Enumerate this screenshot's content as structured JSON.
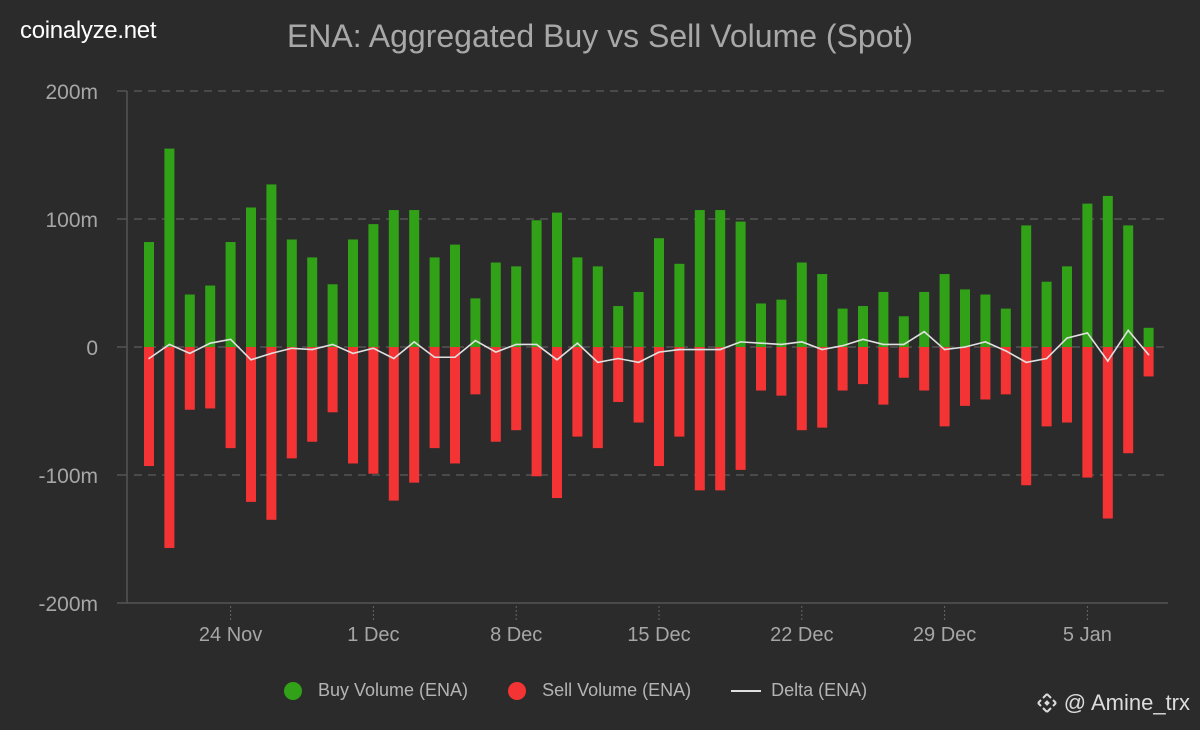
{
  "header": {
    "brand": "coinalyze.net",
    "title": "ENA: Aggregated Buy vs Sell Volume (Spot)"
  },
  "legend": [
    {
      "label": "Buy Volume (ENA)",
      "color": "#31a217",
      "symbol": "dot"
    },
    {
      "label": "Sell Volume (ENA)",
      "color": "#f43434",
      "symbol": "dot"
    },
    {
      "label": "Delta (ENA)",
      "color": "#e0e0e0",
      "symbol": "line"
    }
  ],
  "watermark": {
    "icon": "binance-diamond-icon",
    "text": "@ Amine_trx"
  },
  "chart_data": {
    "type": "bar",
    "title": "ENA: Aggregated Buy vs Sell Volume (Spot)",
    "xlabel": "",
    "ylabel": "",
    "ylim": [
      -200,
      200
    ],
    "y_unit": "m",
    "y_ticks": [
      200,
      100,
      0,
      -100,
      -200
    ],
    "y_tick_labels": [
      "200m",
      "100m",
      "0",
      "-100m",
      "-200m"
    ],
    "grid": true,
    "legend_position": "bottom",
    "x_start_date": "20 Nov",
    "x_tick_labels": [
      "24 Nov",
      "1 Dec",
      "8 Dec",
      "15 Dec",
      "22 Dec",
      "29 Dec",
      "5 Jan"
    ],
    "x_tick_day_index": [
      4,
      11,
      18,
      25,
      32,
      39,
      46
    ],
    "categories": [
      "20 Nov",
      "21 Nov",
      "22 Nov",
      "23 Nov",
      "24 Nov",
      "25 Nov",
      "26 Nov",
      "27 Nov",
      "28 Nov",
      "29 Nov",
      "30 Nov",
      "1 Dec",
      "2 Dec",
      "3 Dec",
      "4 Dec",
      "5 Dec",
      "6 Dec",
      "7 Dec",
      "8 Dec",
      "9 Dec",
      "10 Dec",
      "11 Dec",
      "12 Dec",
      "13 Dec",
      "14 Dec",
      "15 Dec",
      "16 Dec",
      "17 Dec",
      "18 Dec",
      "19 Dec",
      "20 Dec",
      "21 Dec",
      "22 Dec",
      "23 Dec",
      "24 Dec",
      "25 Dec",
      "26 Dec",
      "27 Dec",
      "28 Dec",
      "29 Dec",
      "30 Dec",
      "31 Dec",
      "1 Jan",
      "2 Jan",
      "3 Jan",
      "4 Jan",
      "5 Jan",
      "6 Jan",
      "7 Jan",
      "8 Jan"
    ],
    "series": [
      {
        "name": "Buy Volume (ENA)",
        "type": "bar",
        "color": "#31a217",
        "values": [
          82,
          155,
          41,
          48,
          82,
          109,
          127,
          84,
          70,
          49,
          84,
          96,
          107,
          107,
          70,
          80,
          38,
          66,
          63,
          99,
          105,
          70,
          63,
          32,
          43,
          85,
          65,
          107,
          107,
          98,
          34,
          37,
          66,
          57,
          30,
          32,
          43,
          24,
          43,
          57,
          45,
          41,
          30,
          95,
          51,
          63,
          112,
          118,
          95,
          15
        ]
      },
      {
        "name": "Sell Volume (ENA)",
        "type": "bar",
        "color": "#f43434",
        "values": [
          -93,
          -157,
          -49,
          -48,
          -79,
          -121,
          -135,
          -87,
          -74,
          -51,
          -91,
          -99,
          -120,
          -106,
          -79,
          -91,
          -37,
          -74,
          -65,
          -101,
          -118,
          -70,
          -79,
          -43,
          -59,
          -93,
          -70,
          -112,
          -112,
          -96,
          -34,
          -38,
          -65,
          -63,
          -34,
          -29,
          -45,
          -24,
          -34,
          -62,
          -46,
          -41,
          -37,
          -108,
          -62,
          -59,
          -102,
          -134,
          -83,
          -23
        ]
      },
      {
        "name": "Delta (ENA)",
        "type": "line",
        "color": "#e0e0e0",
        "values": [
          -9,
          2,
          -5,
          3,
          6,
          -10,
          -5,
          -1,
          -2,
          2,
          -5,
          -1,
          -9,
          4,
          -8,
          -8,
          5,
          -4,
          2,
          2,
          -10,
          3,
          -12,
          -9,
          -12,
          -4,
          -2,
          -2,
          -2,
          4,
          3,
          2,
          4,
          -2,
          1,
          6,
          2,
          2,
          12,
          -2,
          0,
          4,
          -3,
          -12,
          -9,
          7,
          11,
          -11,
          13,
          -6
        ]
      }
    ]
  }
}
